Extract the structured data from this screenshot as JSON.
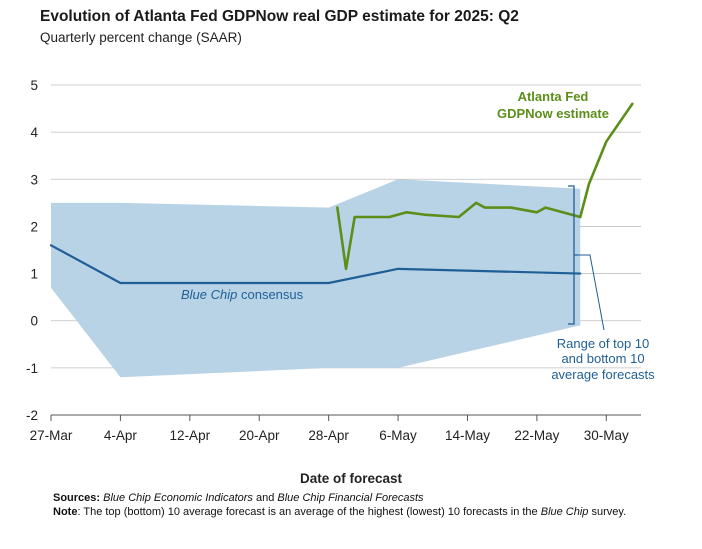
{
  "header": {
    "title": "Evolution of Atlanta Fed GDPNow real GDP estimate for 2025: Q2",
    "subtitle": "Quarterly percent change (SAAR)"
  },
  "footer": {
    "sources_label": "Sources:",
    "sources_italic_1": "Blue Chip Economic Indicators",
    "sources_mid": " and ",
    "sources_italic_2": "Blue Chip Financial Forecasts",
    "note_label": "Note",
    "note_text_1": ": The top (bottom) 10 average forecast is an average of the highest (lowest) 10 forecasts in the ",
    "note_italic": "Blue Chip",
    "note_text_2": " survey."
  },
  "annotations": {
    "gdpnow_line1": "Atlanta Fed",
    "gdpnow_line2": "GDPNow estimate",
    "bluechip_italic": "Blue Chip",
    "bluechip_rest": " consensus",
    "range_line1": "Range of top 10",
    "range_line2": "and bottom 10",
    "range_line3": "average forecasts"
  },
  "colors": {
    "gdpnow": "#5b8f1a",
    "consensus": "#1f5f96",
    "range_fill": "#b9d3e6",
    "range_bracket": "#1f5f96",
    "gridline": "#bfbfbf"
  },
  "chart_data": {
    "type": "line",
    "title": "Evolution of Atlanta Fed GDPNow real GDP estimate for 2025: Q2",
    "subtitle": "Quarterly percent change (SAAR)",
    "xlabel": "Date of forecast",
    "ylabel": "",
    "ylim": [
      -2,
      5
    ],
    "yticks": [
      -2,
      -1,
      0,
      1,
      2,
      3,
      4,
      5
    ],
    "xlim": [
      "2025-03-27",
      "2025-06-03"
    ],
    "xticks": [
      "2025-03-27",
      "2025-04-04",
      "2025-04-12",
      "2025-04-20",
      "2025-04-28",
      "2025-05-06",
      "2025-05-14",
      "2025-05-22",
      "2025-05-30"
    ],
    "xtick_labels": [
      "27-Mar",
      "4-Apr",
      "12-Apr",
      "20-Apr",
      "28-Apr",
      "6-May",
      "14-May",
      "22-May",
      "30-May"
    ],
    "grid": "horizontal",
    "range_band": {
      "name": "Range of top 10 and bottom 10 average forecasts",
      "x": [
        "2025-03-27",
        "2025-04-04",
        "2025-04-28",
        "2025-05-06",
        "2025-05-27"
      ],
      "upper": [
        2.5,
        2.5,
        2.4,
        3.0,
        2.8
      ],
      "lower": [
        0.7,
        -1.2,
        -1.0,
        -1.0,
        -0.1
      ]
    },
    "series": [
      {
        "name": "Blue Chip consensus",
        "x": [
          "2025-03-27",
          "2025-04-04",
          "2025-04-28",
          "2025-05-06",
          "2025-05-27"
        ],
        "values": [
          1.6,
          0.8,
          0.8,
          1.1,
          1.0
        ]
      },
      {
        "name": "Atlanta Fed GDPNow estimate",
        "x": [
          "2025-04-29",
          "2025-04-30",
          "2025-05-01",
          "2025-05-02",
          "2025-05-05",
          "2025-05-07",
          "2025-05-09",
          "2025-05-13",
          "2025-05-15",
          "2025-05-16",
          "2025-05-19",
          "2025-05-22",
          "2025-05-23",
          "2025-05-27",
          "2025-05-28",
          "2025-05-30",
          "2025-06-02"
        ],
        "values": [
          2.4,
          1.1,
          2.2,
          2.2,
          2.2,
          2.3,
          2.25,
          2.2,
          2.5,
          2.4,
          2.4,
          2.3,
          2.4,
          2.2,
          2.9,
          3.8,
          4.6
        ]
      }
    ]
  }
}
